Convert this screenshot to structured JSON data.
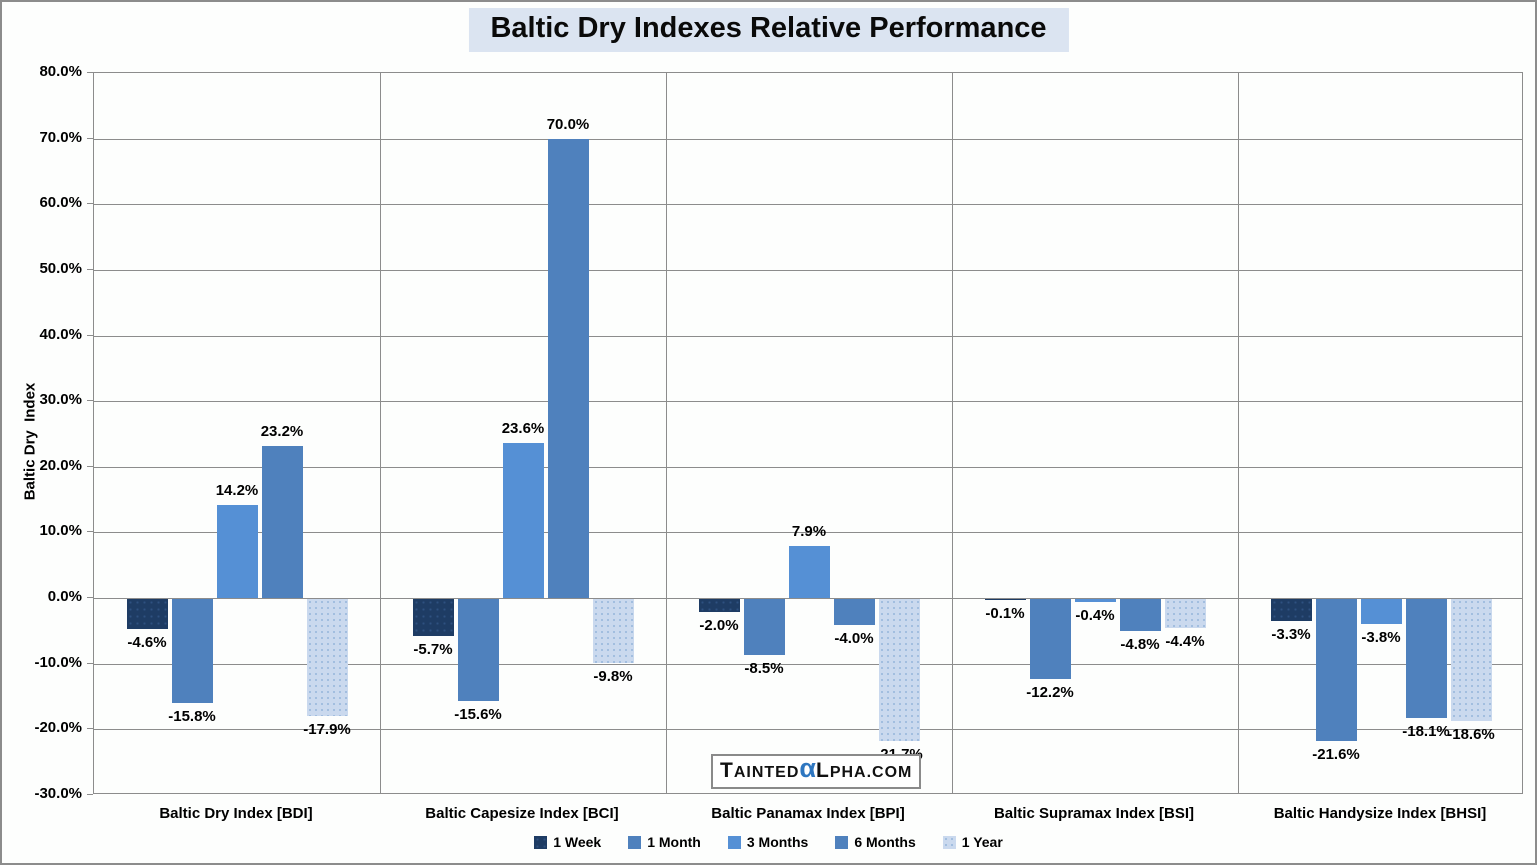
{
  "title": "Baltic Dry Indexes Relative Performance",
  "watermark": {
    "cap1": "T",
    "small1": "AINTED",
    "alpha": "α",
    "cap2": "L",
    "small2": "PHA.COM"
  },
  "chart_data": {
    "type": "bar",
    "title": "Baltic Dry Indexes Relative Performance",
    "ylabel": "Baltic Dry  Index",
    "xlabel": "",
    "ylim": [
      -30,
      80
    ],
    "ytick_step": 10,
    "ytick_labels": [
      "80.0%",
      "70.0%",
      "60.0%",
      "50.0%",
      "40.0%",
      "30.0%",
      "20.0%",
      "10.0%",
      "0.0%",
      "-10.0%",
      "-20.0%",
      "-30.0%"
    ],
    "grid": true,
    "legend_position": "bottom",
    "categories": [
      "Baltic Dry Index [BDI]",
      "Baltic Capesize Index [BCI]",
      "Baltic Panamax Index [BPI]",
      "Baltic Supramax Index [BSI]",
      "Baltic Handysize Index [BHSI]"
    ],
    "series": [
      {
        "name": "1 Week",
        "color": "#1E3C64",
        "pattern": "dots-dark",
        "values": [
          -4.6,
          -5.7,
          -2.0,
          -0.1,
          -3.3
        ]
      },
      {
        "name": "1 Month",
        "color": "#4F81BD",
        "pattern": "",
        "values": [
          -15.8,
          -15.6,
          -8.5,
          -12.2,
          -21.6
        ]
      },
      {
        "name": "3 Months",
        "color": "#5590D5",
        "pattern": "",
        "values": [
          14.2,
          23.6,
          7.9,
          -0.4,
          -3.8
        ]
      },
      {
        "name": "6 Months",
        "color": "#4F81BD",
        "pattern": "",
        "values": [
          23.2,
          70.0,
          -4.0,
          -4.8,
          -18.1
        ]
      },
      {
        "name": "1 Year",
        "color": "#CAD9EE",
        "pattern": "dots-light",
        "values": [
          -17.9,
          -9.8,
          -21.7,
          -4.4,
          -18.6
        ]
      }
    ],
    "colors": {
      "gridline": "#8C8C8C",
      "title_background": "#DBE4F1",
      "watermark_alpha": "#2E76C0"
    }
  }
}
